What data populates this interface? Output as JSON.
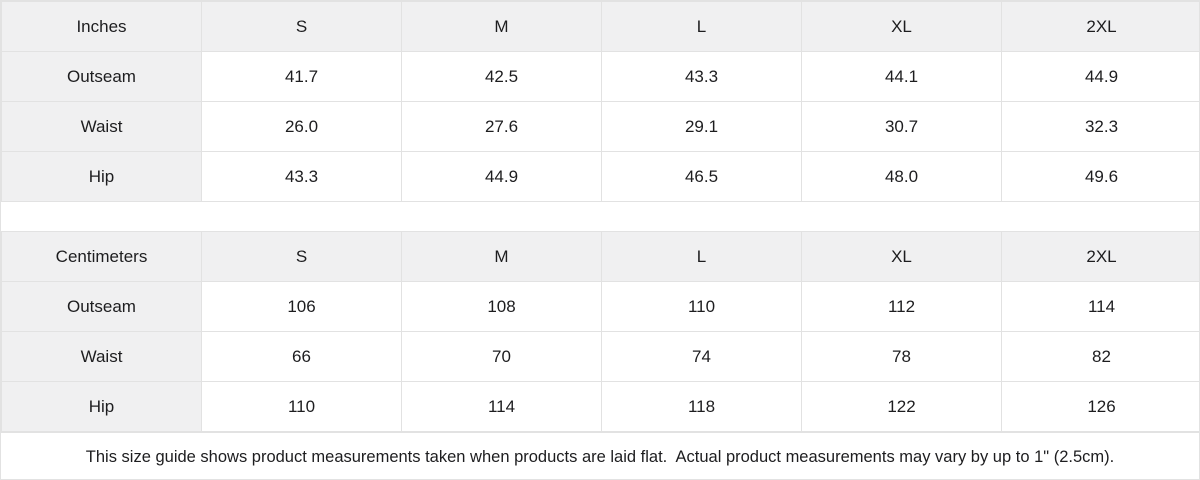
{
  "colors": {
    "header_bg": "#f0f0f1",
    "border": "#e2e2e2",
    "text": "#1d1d1f",
    "background": "#ffffff"
  },
  "tables": [
    {
      "unit_label": "Inches",
      "sizes": [
        "S",
        "M",
        "L",
        "XL",
        "2XL"
      ],
      "rows": [
        {
          "label": "Outseam",
          "values": [
            "41.7",
            "42.5",
            "43.3",
            "44.1",
            "44.9"
          ]
        },
        {
          "label": "Waist",
          "values": [
            "26.0",
            "27.6",
            "29.1",
            "30.7",
            "32.3"
          ]
        },
        {
          "label": "Hip",
          "values": [
            "43.3",
            "44.9",
            "46.5",
            "48.0",
            "49.6"
          ]
        }
      ]
    },
    {
      "unit_label": "Centimeters",
      "sizes": [
        "S",
        "M",
        "L",
        "XL",
        "2XL"
      ],
      "rows": [
        {
          "label": "Outseam",
          "values": [
            "106",
            "108",
            "110",
            "112",
            "114"
          ]
        },
        {
          "label": "Waist",
          "values": [
            "66",
            "70",
            "74",
            "78",
            "82"
          ]
        },
        {
          "label": "Hip",
          "values": [
            "110",
            "114",
            "118",
            "122",
            "126"
          ]
        }
      ]
    }
  ],
  "note": "This size guide shows product measurements taken when products are laid flat.  Actual product measurements may vary by up to 1\" (2.5cm)."
}
